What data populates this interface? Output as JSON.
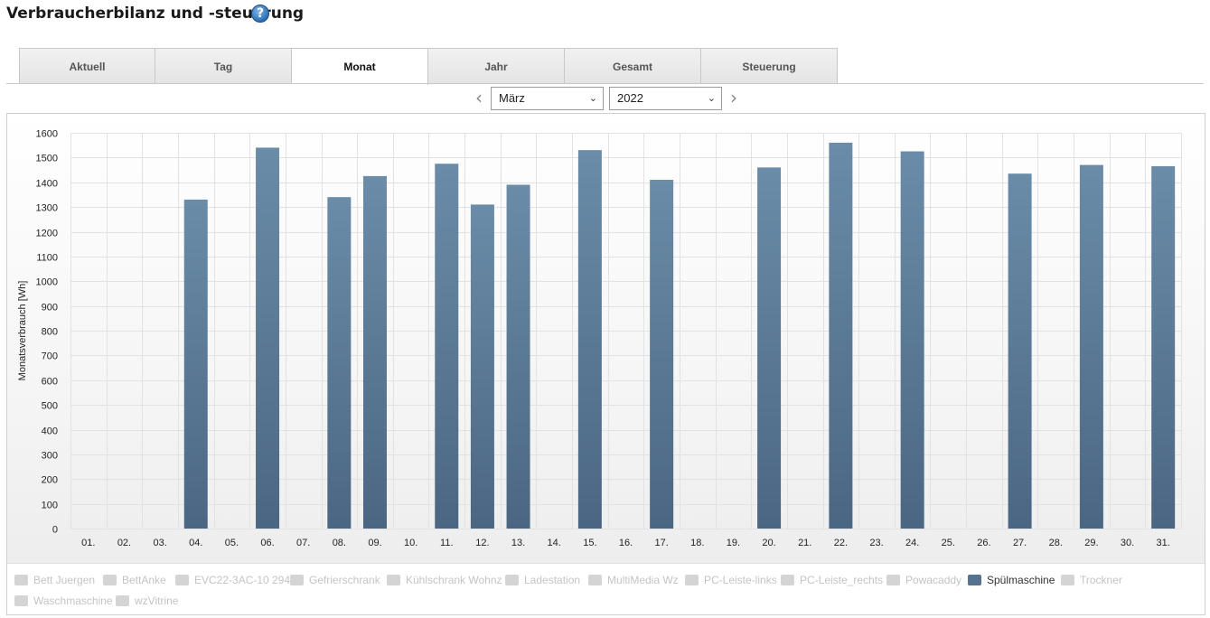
{
  "page": {
    "title": "Verbraucherbilanz und -steuerung",
    "help_icon": "question-circle-icon"
  },
  "tabs": [
    {
      "label": "Aktuell",
      "active": false
    },
    {
      "label": "Tag",
      "active": false
    },
    {
      "label": "Monat",
      "active": true
    },
    {
      "label": "Jahr",
      "active": false
    },
    {
      "label": "Gesamt",
      "active": false
    },
    {
      "label": "Steuerung",
      "active": false
    }
  ],
  "period": {
    "prev_icon": "chevron-left-icon",
    "next_icon": "chevron-right-icon",
    "month_value": "März",
    "year_value": "2022"
  },
  "legend": [
    {
      "label": "Bett Juergen",
      "active": false
    },
    {
      "label": "BettAnke",
      "active": false
    },
    {
      "label": "EVC22-3AC-10 294",
      "active": false
    },
    {
      "label": "Gefrierschrank",
      "active": false
    },
    {
      "label": "Kühlschrank Wohnz",
      "active": false
    },
    {
      "label": "Ladestation",
      "active": false
    },
    {
      "label": "MultiMedia Wz",
      "active": false
    },
    {
      "label": "PC-Leiste-links",
      "active": false
    },
    {
      "label": "PC-Leiste_rechts",
      "active": false
    },
    {
      "label": "Powacaddy",
      "active": false
    },
    {
      "label": "Spülmaschine",
      "active": true
    },
    {
      "label": "Trockner",
      "active": false
    },
    {
      "label": "Waschmaschine",
      "active": false
    },
    {
      "label": "wzVitrine",
      "active": false
    }
  ],
  "colors": {
    "bar_top": "#6a8ca8",
    "bar_bottom": "#4b6682",
    "grid": "#e2e2e2",
    "legend_active": "#557390",
    "legend_inactive": "#d4d4d4"
  },
  "chart_data": {
    "type": "bar",
    "title": "",
    "xlabel": "",
    "ylabel": "Monatsverbrauch [Wh]",
    "ylim": [
      0,
      1600
    ],
    "yticks": [
      0,
      100,
      200,
      300,
      400,
      500,
      600,
      700,
      800,
      900,
      1000,
      1100,
      1200,
      1300,
      1400,
      1500,
      1600
    ],
    "grid": true,
    "categories": [
      "01.",
      "02.",
      "03.",
      "04.",
      "05.",
      "06.",
      "07.",
      "08.",
      "09.",
      "10.",
      "11.",
      "12.",
      "13.",
      "14.",
      "15.",
      "16.",
      "17.",
      "18.",
      "19.",
      "20.",
      "21.",
      "22.",
      "23.",
      "24.",
      "25.",
      "26.",
      "27.",
      "28.",
      "29.",
      "30.",
      "31."
    ],
    "series": [
      {
        "name": "Spülmaschine",
        "values": [
          0,
          0,
          0,
          1330,
          0,
          1540,
          0,
          1340,
          1425,
          0,
          1475,
          1310,
          1390,
          0,
          1530,
          0,
          1410,
          0,
          0,
          1460,
          0,
          1560,
          0,
          1525,
          0,
          0,
          1435,
          0,
          1470,
          0,
          1465
        ]
      }
    ]
  }
}
